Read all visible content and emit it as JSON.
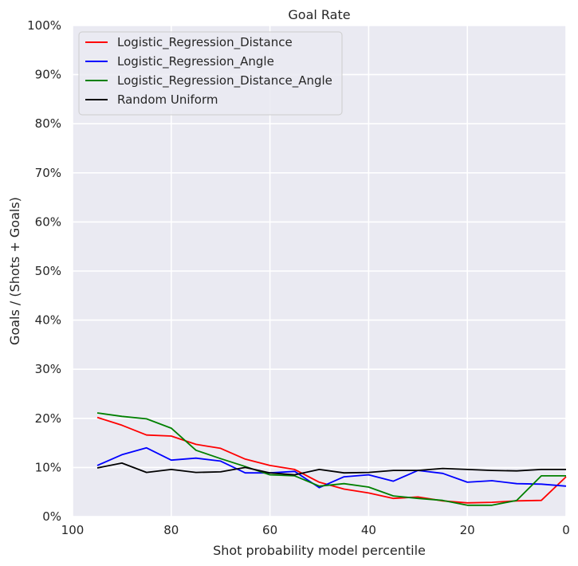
{
  "chart_data": {
    "type": "line",
    "title": "Goal Rate",
    "xlabel": "Shot probability model percentile",
    "ylabel": "Goals / (Shots + Goals)",
    "xlim": [
      100,
      0
    ],
    "ylim": [
      0,
      100
    ],
    "x_reversed": true,
    "grid": true,
    "legend_position": "top-left",
    "xticks": [
      100,
      80,
      60,
      40,
      20,
      0
    ],
    "xtick_labels": [
      "100",
      "80",
      "60",
      "40",
      "20",
      "0"
    ],
    "yticks": [
      0,
      10,
      20,
      30,
      40,
      50,
      60,
      70,
      80,
      90,
      100
    ],
    "ytick_labels": [
      "0%",
      "10%",
      "20%",
      "30%",
      "40%",
      "50%",
      "60%",
      "70%",
      "80%",
      "90%",
      "100%"
    ],
    "x": [
      95,
      90,
      85,
      80,
      75,
      70,
      65,
      60,
      55,
      50,
      45,
      40,
      35,
      30,
      25,
      20,
      15,
      10,
      5,
      0
    ],
    "series": [
      {
        "name": "Logistic_Regression_Distance",
        "color": "#ff0000",
        "values": [
          20.2,
          18.6,
          16.6,
          16.4,
          14.7,
          13.9,
          11.7,
          10.4,
          9.6,
          7.0,
          5.6,
          4.8,
          3.7,
          4.0,
          3.2,
          2.8,
          2.9,
          3.2,
          3.3,
          8.1
        ]
      },
      {
        "name": "Logistic_Regression_Angle",
        "color": "#0000ff",
        "values": [
          10.4,
          12.6,
          14.0,
          11.5,
          11.9,
          11.3,
          8.9,
          8.9,
          9.2,
          5.9,
          8.1,
          8.5,
          7.2,
          9.4,
          8.8,
          7.0,
          7.3,
          6.7,
          6.6,
          6.2
        ]
      },
      {
        "name": "Logistic_Regression_Distance_Angle",
        "color": "#008000",
        "values": [
          21.1,
          20.4,
          19.9,
          18.0,
          13.5,
          11.8,
          10.2,
          8.5,
          8.3,
          6.2,
          6.7,
          6.0,
          4.2,
          3.7,
          3.3,
          2.3,
          2.3,
          3.3,
          8.3,
          8.3
        ]
      },
      {
        "name": "Random Uniform",
        "color": "#000000",
        "values": [
          9.9,
          10.9,
          9.0,
          9.6,
          9.0,
          9.1,
          10.0,
          8.9,
          8.5,
          9.6,
          8.9,
          9.0,
          9.4,
          9.4,
          9.8,
          9.6,
          9.4,
          9.3,
          9.6,
          9.6
        ]
      }
    ]
  },
  "style": {
    "plot_background": "#eaeaf2",
    "grid_color": "#ffffff",
    "text_color": "#262626"
  }
}
